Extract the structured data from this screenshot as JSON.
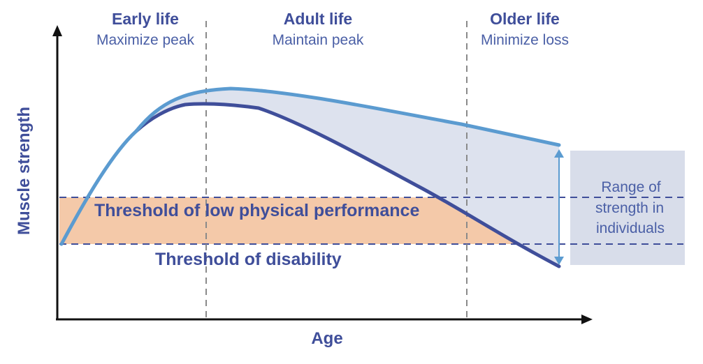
{
  "phases": [
    {
      "title": "Early life",
      "subtitle": "Maximize peak"
    },
    {
      "title": "Adult life",
      "subtitle": "Maintain peak"
    },
    {
      "title": "Older life",
      "subtitle": "Minimize loss"
    }
  ],
  "axes": {
    "x": "Age",
    "y": "Muscle strength"
  },
  "thresholds": {
    "low_performance": "Threshold of low physical performance",
    "disability": "Threshold of disability"
  },
  "range_box": {
    "lines": [
      "Range of",
      "strength in",
      "individuals"
    ]
  },
  "colors": {
    "upper_curve": "#5B9BD0",
    "lower_curve": "#3F4E9A",
    "gap_fill": "#DDE2EE",
    "threshold_band": "#F4C9A9",
    "range_box": "#D8DDEA",
    "text": "#3F4E9A"
  }
}
